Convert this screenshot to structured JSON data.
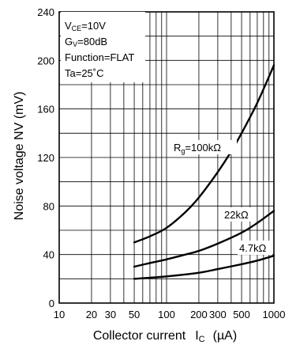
{
  "chart_data": {
    "type": "line",
    "title": "",
    "xlabel": "Collector current",
    "xlabel_symbol": "I",
    "xlabel_subscript": "C",
    "xlabel_unit": "(µA)",
    "ylabel": "Noise voltage  NV  (mV)",
    "xscale": "log",
    "xlim": [
      10,
      1000
    ],
    "ylim": [
      0,
      240
    ],
    "x_ticks": [
      10,
      20,
      30,
      50,
      100,
      200,
      300,
      500,
      1000
    ],
    "x_tick_labels": [
      "10",
      "20",
      "30",
      "50",
      "100",
      "200",
      "300",
      "500",
      "1000"
    ],
    "y_ticks": [
      0,
      40,
      80,
      120,
      160,
      200,
      240
    ],
    "y_tick_labels": [
      "0",
      "40",
      "80",
      "120",
      "160",
      "200",
      "240"
    ],
    "grid": true,
    "conditions": [
      {
        "main": "V",
        "sub": "CE",
        "rest": "=10V"
      },
      {
        "main": "G",
        "sub": "V",
        "rest": "=80dB"
      },
      {
        "main": "Function=FLAT",
        "sub": "",
        "rest": ""
      },
      {
        "main": "Ta=25˚C",
        "sub": "",
        "rest": ""
      }
    ],
    "series": [
      {
        "label_main": "R",
        "label_sub": "g",
        "label_rest": "=100kΩ",
        "x": [
          50,
          70,
          100,
          150,
          200,
          300,
          400,
          500,
          700,
          1000
        ],
        "y": [
          50,
          55,
          62,
          75,
          87,
          108,
          125,
          140,
          165,
          196
        ]
      },
      {
        "label_main": "22kΩ",
        "label_sub": "",
        "label_rest": "",
        "x": [
          50,
          70,
          100,
          150,
          200,
          300,
          500,
          700,
          1000
        ],
        "y": [
          30,
          33,
          36,
          40,
          43,
          49,
          58,
          66,
          76
        ]
      },
      {
        "label_main": "4.7kΩ",
        "label_sub": "",
        "label_rest": "",
        "x": [
          50,
          100,
          200,
          300,
          500,
          700,
          1000
        ],
        "y": [
          20,
          22,
          25,
          28,
          32,
          35,
          39
        ]
      }
    ]
  }
}
